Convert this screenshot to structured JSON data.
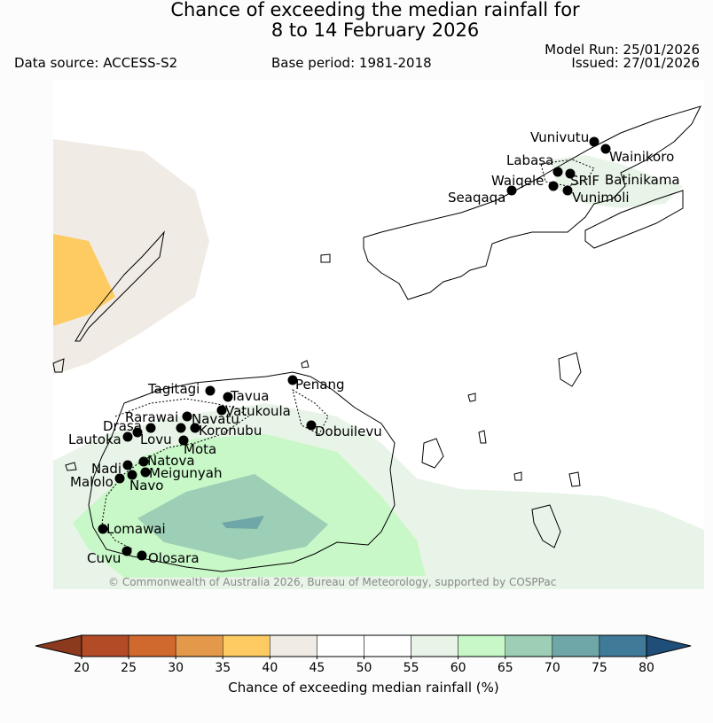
{
  "header": {
    "title_line1": "Chance of exceeding the median rainfall for",
    "title_line2": "8 to 14 February 2026",
    "data_source": "Data source: ACCESS-S2",
    "base_period": "Base period: 1981-2018",
    "model_run": "Model Run: 25/01/2026",
    "issued": "Issued: 27/01/2026"
  },
  "map": {
    "credit": "© Commonwealth of Australia 2026, Bureau of Meteorology, supported by COSPPac",
    "places": [
      "Vunivutu",
      "Wainikoro",
      "Labasa",
      "Waiqele",
      "SRIF",
      "Batinikama",
      "Seaqaqa",
      "Vunimoli",
      "Penang",
      "Tagitagi",
      "Tavua",
      "Vatukoula",
      "Rarawai",
      "Navatu",
      "Drasa",
      "Koronubu",
      "Lautoka",
      "Lovu",
      "Dobuilevu",
      "Mota",
      "Natova",
      "Nadi",
      "Meigunyah",
      "Malolo",
      "Navo",
      "Lomawai",
      "Cuvu",
      "Olosara"
    ]
  },
  "colorbar": {
    "title": "Chance of exceeding median rainfall (%)",
    "ticks": [
      "20",
      "25",
      "30",
      "35",
      "40",
      "45",
      "50",
      "55",
      "60",
      "65",
      "70",
      "75",
      "80"
    ],
    "low_extend_color": "#8c3a1e",
    "high_extend_color": "#1f4e79",
    "colors": [
      "#b34c26",
      "#d0692e",
      "#e3984a",
      "#fdcb62",
      "#f0ebe4",
      "#ffffff",
      "#ffffff",
      "#e9f4e8",
      "#c8f7c8",
      "#9ccfb5",
      "#6fa7a8",
      "#3f7a99"
    ]
  }
}
